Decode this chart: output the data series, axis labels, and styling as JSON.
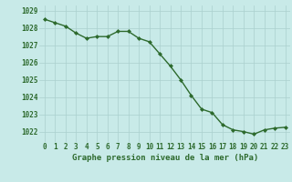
{
  "x": [
    0,
    1,
    2,
    3,
    4,
    5,
    6,
    7,
    8,
    9,
    10,
    11,
    12,
    13,
    14,
    15,
    16,
    17,
    18,
    19,
    20,
    21,
    22,
    23
  ],
  "y": [
    1028.5,
    1028.3,
    1028.1,
    1027.7,
    1027.4,
    1027.5,
    1027.5,
    1027.8,
    1027.8,
    1027.4,
    1027.2,
    1026.5,
    1025.8,
    1025.0,
    1024.1,
    1023.3,
    1023.1,
    1022.4,
    1022.1,
    1022.0,
    1021.85,
    1022.1,
    1022.2,
    1022.25
  ],
  "line_color": "#2d6a2d",
  "marker": "D",
  "marker_size": 2.0,
  "background_color": "#c8eae8",
  "grid_color": "#aad0ce",
  "xlabel": "Graphe pression niveau de la mer (hPa)",
  "xlabel_color": "#2d6a2d",
  "tick_color": "#2d6a2d",
  "ylim_min": 1021.4,
  "ylim_max": 1029.3,
  "yticks": [
    1022,
    1023,
    1024,
    1025,
    1026,
    1027,
    1028,
    1029
  ],
  "xticks": [
    0,
    1,
    2,
    3,
    4,
    5,
    6,
    7,
    8,
    9,
    10,
    11,
    12,
    13,
    14,
    15,
    16,
    17,
    18,
    19,
    20,
    21,
    22,
    23
  ],
  "line_width": 1.0,
  "tick_fontsize": 5.5,
  "xlabel_fontsize": 6.5
}
